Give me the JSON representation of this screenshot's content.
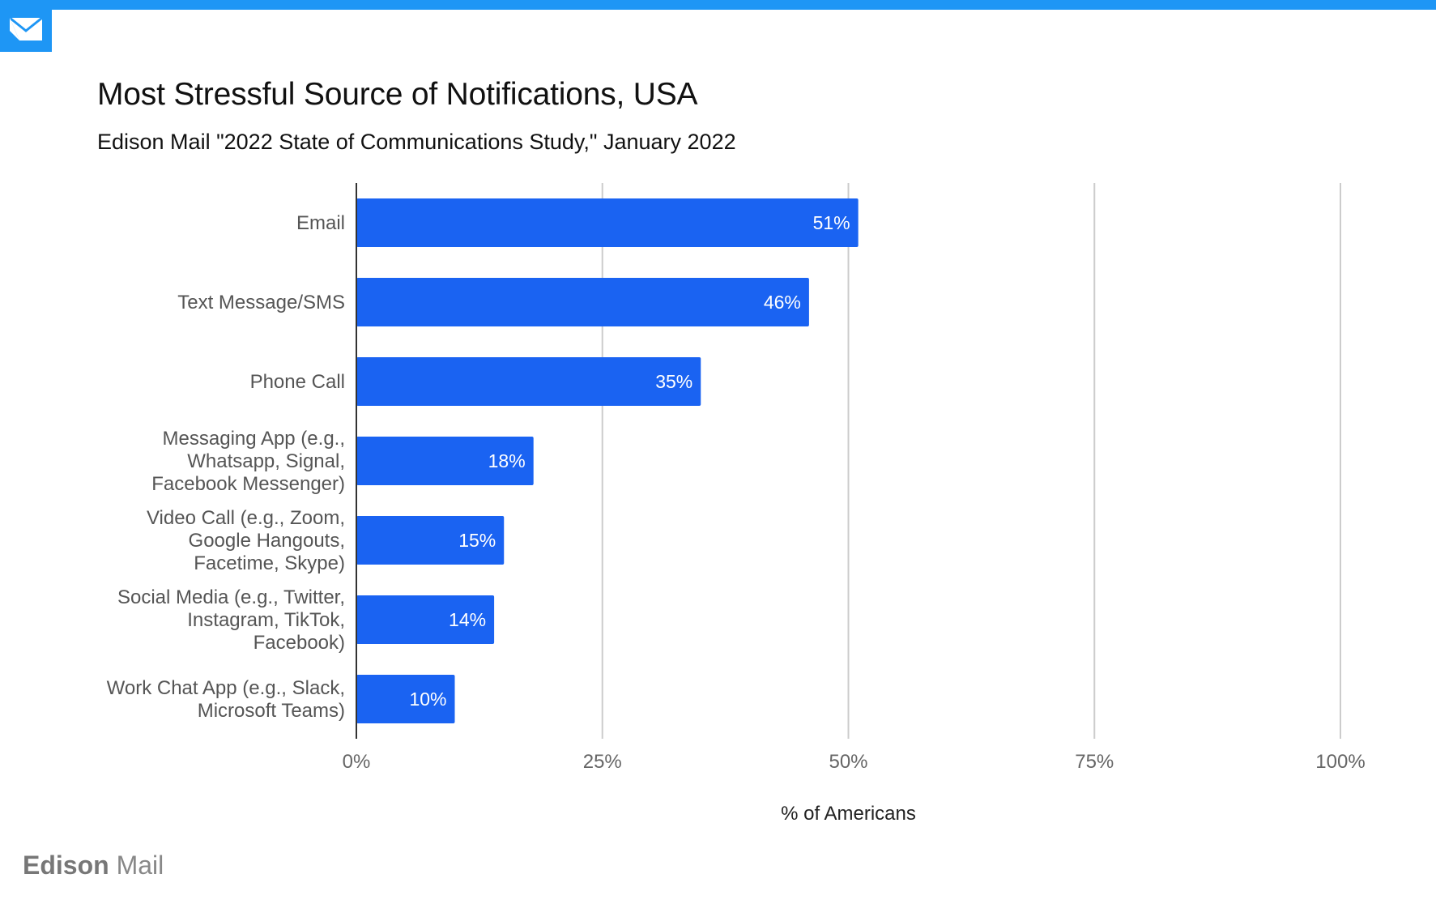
{
  "header": {
    "logo_icon": "envelope-icon",
    "accent_color": "#1e96f5"
  },
  "chart_title": "Most Stressful Source of Notifications, USA",
  "chart_subtitle": "Edison Mail \"2022 State of Communications Study,\" January 2022",
  "brand": {
    "name_bold": "Edison",
    "name_regular": " Mail"
  },
  "chart_data": {
    "type": "bar",
    "orientation": "horizontal",
    "title": "Most Stressful Source of Notifications, USA",
    "subtitle": "Edison Mail \"2022 State of Communications Study,\" January 2022",
    "xlabel": "% of Americans",
    "ylabel": "",
    "xlim": [
      0,
      100
    ],
    "x_ticks": [
      0,
      25,
      50,
      75,
      100
    ],
    "x_tick_labels": [
      "0%",
      "25%",
      "50%",
      "75%",
      "100%"
    ],
    "grid": true,
    "bar_color": "#1a63f2",
    "categories": [
      [
        "Email"
      ],
      [
        "Text Message/SMS"
      ],
      [
        "Phone Call"
      ],
      [
        "Messaging App (e.g.,",
        "Whatsapp, Signal,",
        "Facebook Messenger)"
      ],
      [
        "Video Call (e.g., Zoom,",
        "Google Hangouts,",
        "Facetime, Skype)"
      ],
      [
        "Social Media (e.g., Twitter,",
        "Instagram, TikTok,",
        "Facebook)"
      ],
      [
        "Work Chat App (e.g., Slack,",
        "Microsoft Teams)"
      ]
    ],
    "values": [
      51,
      46,
      35,
      18,
      15,
      14,
      10
    ],
    "data_labels": [
      "51%",
      "46%",
      "35%",
      "18%",
      "15%",
      "14%",
      "10%"
    ]
  }
}
